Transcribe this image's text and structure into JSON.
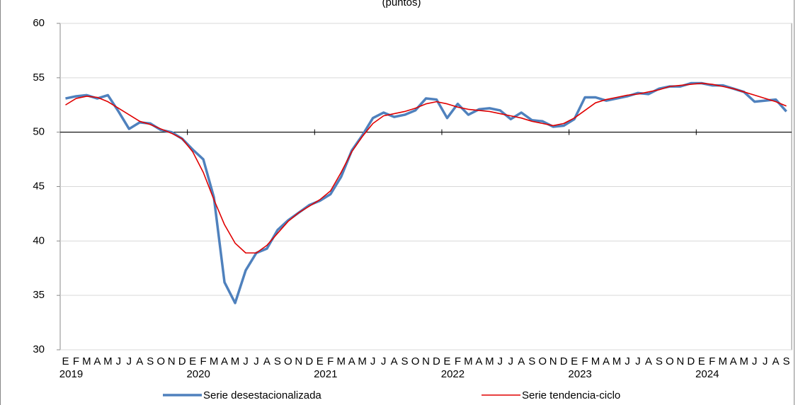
{
  "chart_data": {
    "type": "line",
    "subtitle": "(puntos)",
    "categories": [
      "E",
      "F",
      "M",
      "A",
      "M",
      "J",
      "J",
      "A",
      "S",
      "O",
      "N",
      "D",
      "E",
      "F",
      "M",
      "A",
      "M",
      "J",
      "J",
      "A",
      "S",
      "O",
      "N",
      "D",
      "E",
      "F",
      "M",
      "A",
      "M",
      "J",
      "J",
      "A",
      "S",
      "O",
      "N",
      "D",
      "E",
      "F",
      "M",
      "A",
      "M",
      "J",
      "J",
      "A",
      "S",
      "O",
      "N",
      "D",
      "E",
      "F",
      "M",
      "A",
      "M",
      "J",
      "J",
      "A",
      "S",
      "O",
      "N",
      "D",
      "E",
      "F",
      "M",
      "A",
      "M",
      "J",
      "J",
      "A",
      "S"
    ],
    "year_labels": [
      "2019",
      "2020",
      "2021",
      "2022",
      "2023",
      "2024"
    ],
    "series": [
      {
        "name": "Serie desestacionalizada",
        "color": "#4f81bd",
        "values": [
          53.1,
          53.3,
          53.4,
          53.1,
          53.4,
          51.9,
          50.3,
          50.9,
          50.8,
          50.2,
          50.0,
          49.4,
          48.4,
          47.5,
          44.0,
          36.2,
          34.3,
          37.3,
          38.9,
          39.3,
          41.0,
          41.9,
          42.6,
          43.3,
          43.7,
          44.3,
          45.9,
          48.3,
          49.7,
          51.3,
          51.8,
          51.4,
          51.6,
          52.0,
          53.1,
          53.0,
          51.3,
          52.6,
          51.6,
          52.1,
          52.2,
          52.0,
          51.2,
          51.8,
          51.1,
          51.0,
          50.5,
          50.6,
          51.2,
          53.2,
          53.2,
          52.9,
          53.1,
          53.3,
          53.6,
          53.5,
          54.0,
          54.2,
          54.2,
          54.5,
          54.5,
          54.3,
          54.3,
          54.0,
          53.7,
          52.8,
          52.9,
          53.0,
          51.9
        ]
      },
      {
        "name": "Serie tendencia-ciclo",
        "color": "#e00000",
        "values": [
          52.5,
          53.1,
          53.3,
          53.2,
          52.8,
          52.2,
          51.6,
          51.0,
          50.7,
          50.3,
          49.9,
          49.4,
          48.2,
          46.3,
          43.8,
          41.5,
          39.8,
          38.9,
          38.9,
          39.6,
          40.7,
          41.8,
          42.6,
          43.2,
          43.8,
          44.6,
          46.3,
          48.2,
          49.6,
          50.8,
          51.5,
          51.7,
          51.9,
          52.2,
          52.6,
          52.8,
          52.6,
          52.3,
          52.1,
          52.0,
          51.9,
          51.7,
          51.5,
          51.3,
          51.0,
          50.8,
          50.6,
          50.8,
          51.3,
          52.0,
          52.7,
          53.0,
          53.2,
          53.4,
          53.5,
          53.7,
          53.9,
          54.2,
          54.3,
          54.4,
          54.5,
          54.4,
          54.2,
          54.0,
          53.7,
          53.4,
          53.1,
          52.8,
          52.4
        ]
      }
    ],
    "ylim": [
      30,
      60
    ],
    "yticks": [
      30,
      35,
      40,
      45,
      50,
      55,
      60
    ],
    "x_axis_at": 50,
    "grid": true
  }
}
